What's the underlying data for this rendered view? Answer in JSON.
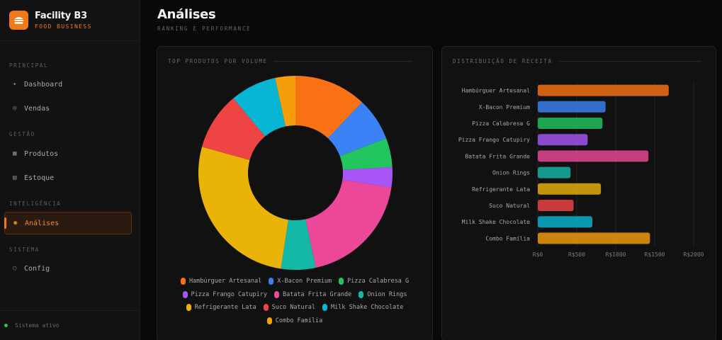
{
  "brand": {
    "name": "Facility B3",
    "subtitle": "FOOD BUSINESS",
    "logo_icon": "burger-icon"
  },
  "sidebar": {
    "sections": [
      {
        "label": "PRINCIPAL",
        "items": [
          {
            "label": "Dashboard",
            "icon": "diamond-icon"
          },
          {
            "label": "Vendas",
            "icon": "circle-icon"
          }
        ]
      },
      {
        "label": "GESTÃO",
        "items": [
          {
            "label": "Produtos",
            "icon": "grid-icon"
          },
          {
            "label": "Estoque",
            "icon": "box-icon"
          }
        ]
      },
      {
        "label": "INTELIGÊNCIA",
        "items": [
          {
            "label": "Análises",
            "icon": "target-icon",
            "active": true
          }
        ]
      },
      {
        "label": "SISTEMA",
        "items": [
          {
            "label": "Config",
            "icon": "ring-icon"
          }
        ]
      }
    ],
    "status": "Sistema ativo"
  },
  "header": {
    "title": "Análises",
    "subtitle": "RANKING E PERFORMANCE"
  },
  "panels": {
    "volume_title": "TOP PRODUTOS POR VOLUME",
    "revenue_title": "DISTRIBUIÇÃO DE RECEITA"
  },
  "colors": {
    "accent": "#ef7a1c",
    "series": [
      "#f97316",
      "#3b82f6",
      "#22c55e",
      "#a855f7",
      "#ec4899",
      "#14b8a6",
      "#eab308",
      "#ef4444",
      "#06b6d4",
      "#f59e0b"
    ]
  },
  "chart_data": [
    {
      "type": "pie",
      "variant": "donut",
      "title": "TOP PRODUTOS POR VOLUME",
      "labels": [
        "Hambúrguer Artesanal",
        "X-Bacon Premium",
        "Pizza Calabresa G",
        "Pizza Frango Catupiry",
        "Batata Frita Grande",
        "Onion Rings",
        "Refrigerante Lata",
        "Suco Natural",
        "Milk Shake Chocolate",
        "Combo Família"
      ],
      "values": [
        12.5,
        7.5,
        5,
        3.5,
        20,
        6,
        28,
        10,
        8,
        3.5
      ],
      "legend": "bottom"
    },
    {
      "type": "bar",
      "orientation": "horizontal",
      "title": "DISTRIBUIÇÃO DE RECEITA",
      "categories": [
        "Hambúrguer Artesanal",
        "X-Bacon Premium",
        "Pizza Calabresa G",
        "Pizza Frango Catupiry",
        "Batata Frita Grande",
        "Onion Rings",
        "Refrigerante Lata",
        "Suco Natural",
        "Milk Shake Chocolate",
        "Combo Família"
      ],
      "values": [
        1680,
        870,
        830,
        640,
        1420,
        420,
        810,
        460,
        700,
        1440
      ],
      "xlim": [
        0,
        2000
      ],
      "xticks": [
        "R$0",
        "R$500",
        "R$1000",
        "R$1500",
        "R$2000"
      ],
      "grid": true
    }
  ]
}
